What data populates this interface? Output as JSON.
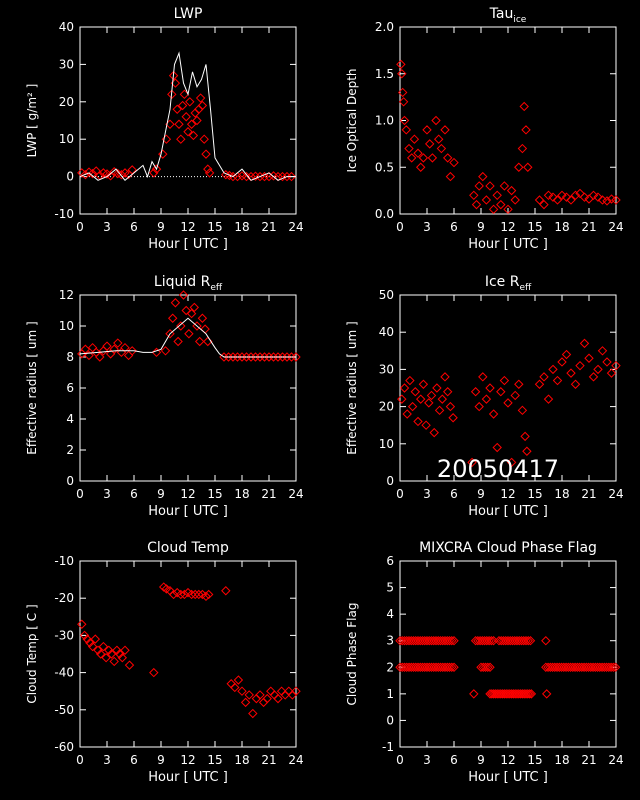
{
  "date_stamp": "20050417",
  "colors": {
    "background": "#000000",
    "axes": "#ffffff",
    "markers": "#ff0000",
    "trace": "#ffffff"
  },
  "chart_data": [
    {
      "type": "scatter",
      "title": "LWP",
      "title_main": "LWP",
      "title_sub": "",
      "xlabel": "Hour [ UTC ]",
      "ylabel": "LWP [ g/m² ]",
      "xlim": [
        0,
        24
      ],
      "ylim": [
        -10,
        40
      ],
      "xticks": [
        0,
        3,
        6,
        9,
        12,
        15,
        18,
        21,
        24
      ],
      "yticks": [
        -10,
        0,
        10,
        20,
        30,
        40
      ],
      "zero_line": true,
      "marker": "diamond",
      "series": [
        {
          "kind": "markers",
          "x": [
            0.2,
            0.6,
            1.0,
            1.4,
            1.8,
            2.2,
            2.6,
            3.0,
            3.4,
            3.8,
            4.2,
            4.6,
            5.0,
            5.4,
            5.8,
            8.2,
            8.5,
            9.2,
            9.6,
            10.0,
            10.2,
            10.4,
            10.6,
            10.8,
            11.0,
            11.2,
            11.4,
            11.6,
            11.8,
            12.0,
            12.2,
            12.4,
            12.6,
            12.8,
            13.0,
            13.2,
            13.4,
            13.6,
            13.8,
            14.0,
            14.2,
            14.4,
            16.2,
            16.6,
            17.0,
            17.5,
            18.0,
            18.5,
            19.0,
            19.5,
            20.0,
            20.5,
            21.0,
            21.5,
            22.0,
            22.5,
            23.0,
            23.5
          ],
          "y": [
            1,
            0.5,
            1.2,
            0.8,
            1.5,
            0.3,
            1.0,
            0.7,
            0.2,
            1.3,
            0.8,
            0.5,
            1.0,
            0.6,
            1.8,
            1,
            2,
            6,
            10,
            14,
            22,
            27,
            25,
            18,
            14,
            10,
            19,
            22,
            16,
            12,
            20,
            14,
            11,
            17,
            15,
            18,
            21,
            19,
            10,
            6,
            2,
            1,
            0.5,
            0.3,
            0,
            0,
            0.2,
            0,
            0,
            0.1,
            0,
            0,
            0,
            0.2,
            0,
            0,
            0,
            0
          ]
        },
        {
          "kind": "trace",
          "x": [
            0,
            1,
            2,
            3,
            4,
            5,
            6,
            7,
            7.5,
            8,
            8.5,
            9,
            9.5,
            10,
            10.5,
            11,
            11.5,
            12,
            12.5,
            13,
            13.5,
            14,
            14.5,
            15,
            15.5,
            16,
            17,
            18,
            19,
            20,
            21,
            22,
            23,
            24
          ],
          "y": [
            0,
            1,
            -1,
            0,
            2,
            -1,
            1,
            3,
            0,
            4,
            2,
            6,
            12,
            18,
            30,
            33,
            25,
            22,
            28,
            24,
            26,
            30,
            18,
            5,
            3,
            1,
            0,
            2,
            -1,
            0,
            1,
            -1,
            0,
            0
          ]
        }
      ]
    },
    {
      "type": "scatter",
      "title": "Tau_ice",
      "title_main": "Tau",
      "title_sub": "ice",
      "xlabel": "Hour [ UTC ]",
      "ylabel": "Ice Optical Depth",
      "xlim": [
        0,
        24
      ],
      "ylim": [
        0,
        2
      ],
      "xticks": [
        0,
        3,
        6,
        9,
        12,
        15,
        18,
        21,
        24
      ],
      "yticks": [
        0.0,
        0.5,
        1.0,
        1.5,
        2.0
      ],
      "marker": "diamond",
      "series": [
        {
          "kind": "markers",
          "x": [
            0.1,
            0.2,
            0.3,
            0.4,
            0.5,
            0.7,
            1.0,
            1.3,
            1.6,
            2.0,
            2.3,
            2.6,
            3.0,
            3.3,
            3.6,
            4.0,
            4.3,
            4.6,
            5.0,
            5.3,
            5.6,
            6.0,
            8.2,
            8.5,
            8.8,
            9.2,
            9.6,
            10.0,
            10.4,
            10.8,
            11.2,
            11.6,
            12.0,
            12.4,
            12.8,
            13.2,
            13.6,
            13.8,
            14.0,
            14.2,
            15.5,
            16.0,
            16.5,
            17.0,
            17.5,
            18.0,
            18.5,
            19.0,
            19.5,
            20.0,
            20.5,
            21.0,
            21.5,
            22.0,
            22.5,
            23.0,
            23.5,
            24.0
          ],
          "y": [
            1.6,
            1.5,
            1.3,
            1.2,
            1.0,
            0.9,
            0.7,
            0.6,
            0.8,
            0.65,
            0.5,
            0.6,
            0.9,
            0.75,
            0.6,
            1.0,
            0.8,
            0.7,
            0.9,
            0.6,
            0.4,
            0.55,
            0.2,
            0.1,
            0.3,
            0.4,
            0.15,
            0.3,
            0.05,
            0.2,
            0.1,
            0.3,
            0.05,
            0.25,
            0.15,
            0.5,
            0.7,
            1.15,
            0.9,
            0.5,
            0.15,
            0.1,
            0.2,
            0.18,
            0.15,
            0.2,
            0.18,
            0.15,
            0.2,
            0.22,
            0.18,
            0.16,
            0.2,
            0.18,
            0.15,
            0.14,
            0.16,
            0.15
          ]
        }
      ]
    },
    {
      "type": "scatter",
      "title": "Liquid R_eff",
      "title_main": "Liquid R",
      "title_sub": "eff",
      "xlabel": "Hour [ UTC ]",
      "ylabel": "Effective radius [ um ]",
      "xlim": [
        0,
        24
      ],
      "ylim": [
        0,
        12
      ],
      "xticks": [
        0,
        3,
        6,
        9,
        12,
        15,
        18,
        21,
        24
      ],
      "yticks": [
        0,
        2,
        4,
        6,
        8,
        10,
        12
      ],
      "marker": "diamond",
      "series": [
        {
          "kind": "markers",
          "x": [
            0.2,
            0.6,
            1.0,
            1.4,
            1.8,
            2.2,
            2.6,
            3.0,
            3.4,
            3.8,
            4.2,
            4.6,
            5.0,
            5.4,
            5.8,
            8.5,
            9.5,
            10.0,
            10.3,
            10.6,
            10.9,
            11.2,
            11.5,
            11.8,
            12.1,
            12.4,
            12.7,
            13.0,
            13.3,
            13.6,
            13.9,
            14.2,
            16.0,
            16.5,
            17.0,
            17.5,
            18.0,
            18.5,
            19.0,
            19.5,
            20.0,
            20.5,
            21.0,
            21.5,
            22.0,
            22.5,
            23.0,
            23.5,
            24.0
          ],
          "y": [
            8.2,
            8.5,
            8.1,
            8.6,
            8.3,
            8.0,
            8.4,
            8.7,
            8.2,
            8.5,
            8.9,
            8.3,
            8.6,
            8.1,
            8.4,
            8.3,
            8.4,
            9.5,
            10.5,
            11.5,
            9.0,
            10.0,
            12.0,
            11.0,
            9.5,
            10.8,
            11.2,
            10.0,
            9.0,
            10.5,
            9.8,
            9.0,
            8.0,
            8.0,
            8.0,
            8.0,
            8.0,
            8.0,
            8.0,
            8.0,
            8.0,
            8.0,
            8.0,
            8.0,
            8.0,
            8.0,
            8.0,
            8.0,
            8.0
          ]
        },
        {
          "kind": "trace",
          "x": [
            0,
            2,
            4,
            6,
            7,
            8,
            8.5,
            9,
            10,
            12,
            14,
            15,
            15.5,
            16,
            24
          ],
          "y": [
            8.2,
            8.3,
            8.4,
            8.4,
            8.3,
            8.3,
            8.4,
            8.5,
            9.5,
            10.5,
            9.5,
            8.6,
            8.2,
            8.0,
            8.0
          ]
        }
      ]
    },
    {
      "type": "scatter",
      "title": "Ice R_eff",
      "title_main": "Ice R",
      "title_sub": "eff",
      "xlabel": "Hour [ UTC ]",
      "ylabel": "Effective radius [ um ]",
      "xlim": [
        0,
        24
      ],
      "ylim": [
        0,
        50
      ],
      "xticks": [
        0,
        3,
        6,
        9,
        12,
        15,
        18,
        21,
        24
      ],
      "yticks": [
        0,
        10,
        20,
        30,
        40,
        50
      ],
      "marker": "diamond",
      "series": [
        {
          "kind": "markers",
          "x": [
            0.2,
            0.5,
            0.8,
            1.1,
            1.4,
            1.7,
            2.0,
            2.3,
            2.6,
            2.9,
            3.2,
            3.5,
            3.8,
            4.1,
            4.4,
            4.7,
            5.0,
            5.3,
            5.6,
            5.9,
            8.0,
            8.4,
            8.8,
            9.2,
            9.6,
            10.0,
            10.4,
            10.8,
            11.2,
            11.6,
            12.0,
            12.4,
            12.8,
            13.2,
            13.6,
            13.9,
            14.1,
            15.5,
            16.0,
            16.5,
            17.0,
            17.5,
            18.0,
            18.5,
            19.0,
            19.5,
            20.0,
            20.5,
            21.0,
            21.5,
            22.0,
            22.5,
            23.0,
            23.5,
            24.0
          ],
          "y": [
            22,
            25,
            18,
            27,
            20,
            24,
            16,
            22,
            26,
            15,
            21,
            23,
            13,
            25,
            19,
            22,
            28,
            24,
            20,
            17,
            5,
            24,
            20,
            28,
            22,
            25,
            18,
            9,
            24,
            27,
            21,
            5,
            23,
            26,
            19,
            12,
            8,
            26,
            28,
            22,
            30,
            27,
            32,
            34,
            29,
            26,
            31,
            37,
            33,
            28,
            30,
            35,
            32,
            29,
            31
          ]
        }
      ]
    },
    {
      "type": "scatter",
      "title": "Cloud Temp",
      "title_main": "Cloud Temp",
      "title_sub": "",
      "xlabel": "Hour [ UTC ]",
      "ylabel": "Cloud Temp [ C ]",
      "xlim": [
        0,
        24
      ],
      "ylim": [
        -60,
        -10
      ],
      "xticks": [
        0,
        3,
        6,
        9,
        12,
        15,
        18,
        21,
        24
      ],
      "yticks": [
        -60,
        -50,
        -40,
        -30,
        -20,
        -10
      ],
      "marker": "diamond",
      "series": [
        {
          "kind": "markers",
          "x": [
            0.2,
            0.5,
            0.8,
            1.1,
            1.4,
            1.7,
            2.0,
            2.3,
            2.6,
            2.9,
            3.2,
            3.5,
            3.8,
            4.1,
            4.4,
            4.7,
            5.0,
            5.5,
            8.2,
            9.3,
            9.6,
            10.0,
            10.4,
            10.8,
            11.2,
            11.6,
            12.0,
            12.4,
            12.8,
            13.2,
            13.6,
            14.0,
            14.3,
            16.2,
            16.8,
            17.2,
            17.6,
            18.0,
            18.4,
            18.8,
            19.2,
            19.6,
            20.0,
            20.4,
            20.8,
            21.2,
            21.6,
            22.0,
            22.4,
            22.8,
            23.2,
            23.6,
            24.0
          ],
          "y": [
            -27,
            -30,
            -31,
            -32,
            -33,
            -31,
            -34,
            -35,
            -33,
            -36,
            -34,
            -35,
            -37,
            -34,
            -35,
            -36,
            -34,
            -38,
            -40,
            -17,
            -17.5,
            -18,
            -19,
            -18.5,
            -19,
            -19,
            -18.5,
            -19,
            -19,
            -19,
            -19,
            -19.5,
            -19,
            -18,
            -43,
            -44,
            -42,
            -45,
            -48,
            -46,
            -51,
            -47,
            -46,
            -48,
            -47,
            -45,
            -46,
            -47,
            -45,
            -46,
            -45,
            -46,
            -45
          ]
        }
      ]
    },
    {
      "type": "scatter",
      "title": "MIXCRA Cloud Phase Flag",
      "title_main": "MIXCRA Cloud Phase Flag",
      "title_sub": "",
      "xlabel": "Hour [ UTC ]",
      "ylabel": "Cloud Phase Flag",
      "xlim": [
        0,
        24
      ],
      "ylim": [
        -1,
        6
      ],
      "xticks": [
        0,
        3,
        6,
        9,
        12,
        15,
        18,
        21,
        24
      ],
      "yticks": [
        -1,
        0,
        1,
        2,
        3,
        4,
        5,
        6
      ],
      "marker": "diamond",
      "series": [
        {
          "kind": "markers",
          "runs": [
            {
              "y": 3,
              "x_from": 0.0,
              "x_to": 6.2,
              "step": 0.25
            },
            {
              "y": 2,
              "x_from": 0.0,
              "x_to": 6.2,
              "step": 0.25
            },
            {
              "y": 3,
              "x_from": 8.4,
              "x_to": 10.6,
              "step": 0.25
            },
            {
              "y": 3,
              "x_from": 11.0,
              "x_to": 14.6,
              "step": 0.25
            },
            {
              "y": 1,
              "x_from": 10.0,
              "x_to": 14.6,
              "step": 0.2
            },
            {
              "y": 2,
              "x_from": 9.0,
              "x_to": 10.0,
              "step": 0.25
            },
            {
              "y": 2,
              "x_from": 16.2,
              "x_to": 24.0,
              "step": 0.25
            }
          ],
          "x": [
            8.2,
            16.2,
            16.3
          ],
          "y": [
            1,
            3,
            1
          ]
        }
      ]
    }
  ]
}
